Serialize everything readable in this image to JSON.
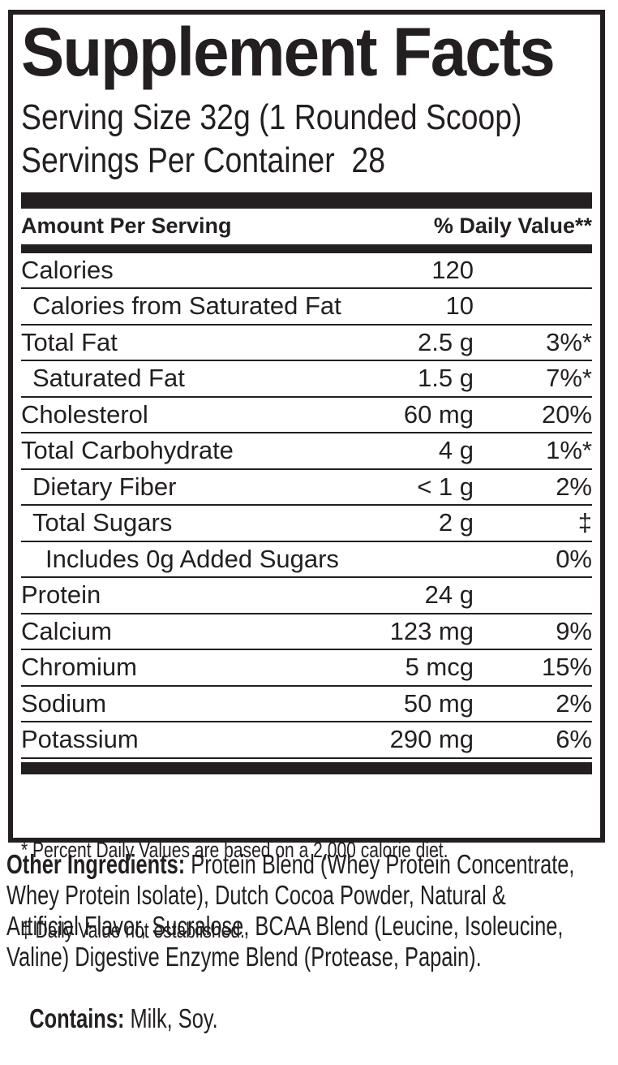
{
  "colors": {
    "ink": "#231f20",
    "background": "#ffffff"
  },
  "label": {
    "title": "Supplement Facts",
    "serving_size": "Serving Size 32g (1 Rounded Scoop)",
    "servings_per_container": "Servings Per Container  28",
    "column_headers": {
      "left": "Amount Per Serving",
      "right": "% Daily Value**"
    },
    "nutrients": [
      {
        "name": "Calories",
        "amount": "120",
        "dv": "",
        "indent": 0
      },
      {
        "name": "Calories from Saturated Fat",
        "amount": "10",
        "dv": "",
        "indent": 1
      },
      {
        "name": "Total Fat",
        "amount": "2.5 g",
        "dv": "3%*",
        "indent": 0
      },
      {
        "name": "Saturated Fat",
        "amount": "1.5 g",
        "dv": "7%*",
        "indent": 1
      },
      {
        "name": "Cholesterol",
        "amount": "60 mg",
        "dv": "20%",
        "indent": 0
      },
      {
        "name": "Total Carbohydrate",
        "amount": "4 g",
        "dv": "1%*",
        "indent": 0
      },
      {
        "name": "Dietary Fiber",
        "amount": "< 1 g",
        "dv": "2%",
        "indent": 1
      },
      {
        "name": "Total Sugars",
        "amount": "2 g",
        "dv": "‡",
        "indent": 1
      },
      {
        "name": "Includes 0g Added Sugars",
        "amount": "",
        "dv": "0%",
        "indent": 2
      },
      {
        "name": "Protein",
        "amount": "24 g",
        "dv": "",
        "indent": 0
      },
      {
        "name": "Calcium",
        "amount": "123 mg",
        "dv": "9%",
        "indent": 0
      },
      {
        "name": "Chromium",
        "amount": "5 mcg",
        "dv": "15%",
        "indent": 0
      },
      {
        "name": "Sodium",
        "amount": "50 mg",
        "dv": "2%",
        "indent": 0
      },
      {
        "name": "Potassium",
        "amount": "290 mg",
        "dv": "6%",
        "indent": 0
      }
    ],
    "footnotes": [
      "* Percent Daily Values are based on a 2,000 calorie diet.",
      "‡ Daily Value not established."
    ]
  },
  "other_ingredients": {
    "label": "Other Ingredients:",
    "lines": [
      "Protein Blend (Whey Protein Concentrate,",
      "Whey Protein Isolate), Dutch Cocoa Powder, Natural &",
      "Artificial Flavor, Sucralose, BCAA Blend (Leucine, Isoleucine,",
      "Valine) Digestive Enzyme Blend (Protease, Papain)."
    ]
  },
  "contains": {
    "label": "Contains:",
    "text": "Milk, Soy."
  }
}
